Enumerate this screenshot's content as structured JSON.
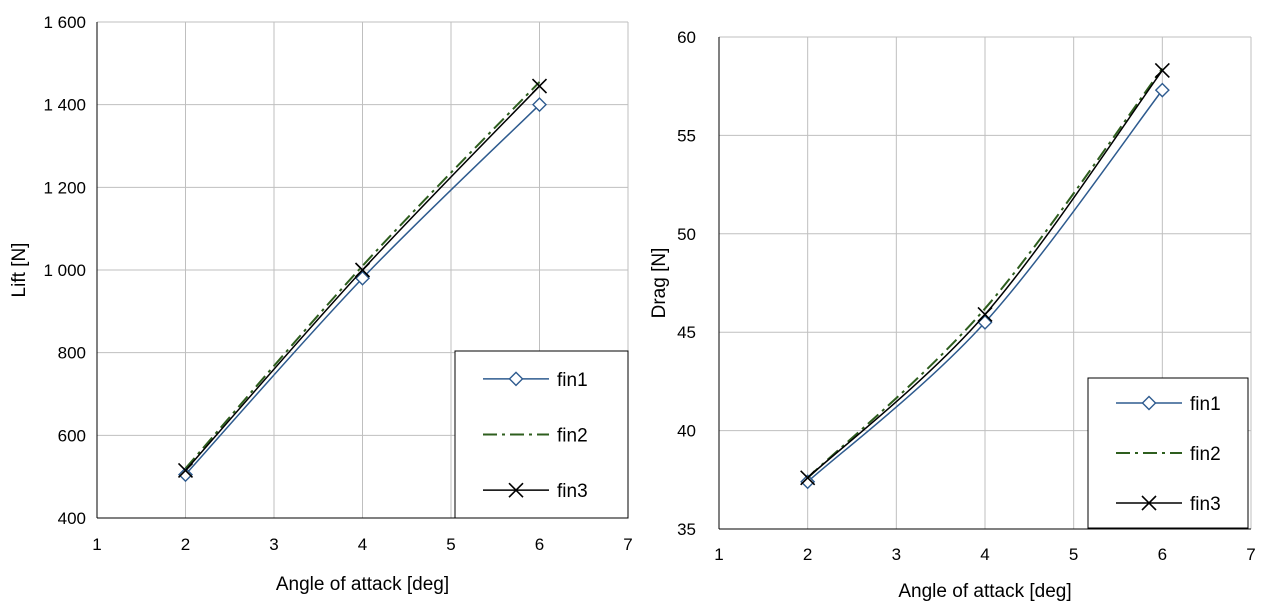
{
  "colors": {
    "fin1": "#2e5b8f",
    "fin2": "#2e5e1e",
    "fin3": "#000000",
    "grid": "#bfbfbf"
  },
  "chart_data": [
    {
      "type": "line",
      "title": "",
      "xlabel": "Angle of attack [deg]",
      "ylabel": "Lift [N]",
      "xlim": [
        1,
        7
      ],
      "ylim": [
        400,
        1600
      ],
      "xticks": [
        "1",
        "2",
        "3",
        "4",
        "5",
        "6",
        "7"
      ],
      "yticks": [
        "400",
        "600",
        "800",
        "1 000",
        "1 200",
        "1 400",
        "1 600"
      ],
      "grid": true,
      "legend_position": "bottom-right",
      "x": [
        2,
        4,
        6
      ],
      "series": [
        {
          "name": "fin1",
          "values": [
            505,
            980,
            1400
          ],
          "marker": "diamond",
          "dash": "solid"
        },
        {
          "name": "fin2",
          "values": [
            520,
            1010,
            1455
          ],
          "marker": "none",
          "dash": "dashdot"
        },
        {
          "name": "fin3",
          "values": [
            515,
            1000,
            1445
          ],
          "marker": "x",
          "dash": "solid"
        }
      ]
    },
    {
      "type": "line",
      "title": "",
      "xlabel": "Angle of attack [deg]",
      "ylabel": "Drag [N]",
      "xlim": [
        1,
        7
      ],
      "ylim": [
        35,
        60
      ],
      "xticks": [
        "1",
        "2",
        "3",
        "4",
        "5",
        "6",
        "7"
      ],
      "yticks": [
        "35",
        "40",
        "45",
        "50",
        "55",
        "60"
      ],
      "grid": true,
      "legend_position": "bottom-right",
      "x": [
        2,
        4,
        6
      ],
      "series": [
        {
          "name": "fin1",
          "values": [
            37.4,
            45.5,
            57.3
          ],
          "marker": "diamond",
          "dash": "solid"
        },
        {
          "name": "fin2",
          "values": [
            37.6,
            46.2,
            58.4
          ],
          "marker": "none",
          "dash": "dashdot"
        },
        {
          "name": "fin3",
          "values": [
            37.6,
            45.9,
            58.3
          ],
          "marker": "x",
          "dash": "solid"
        }
      ]
    }
  ]
}
